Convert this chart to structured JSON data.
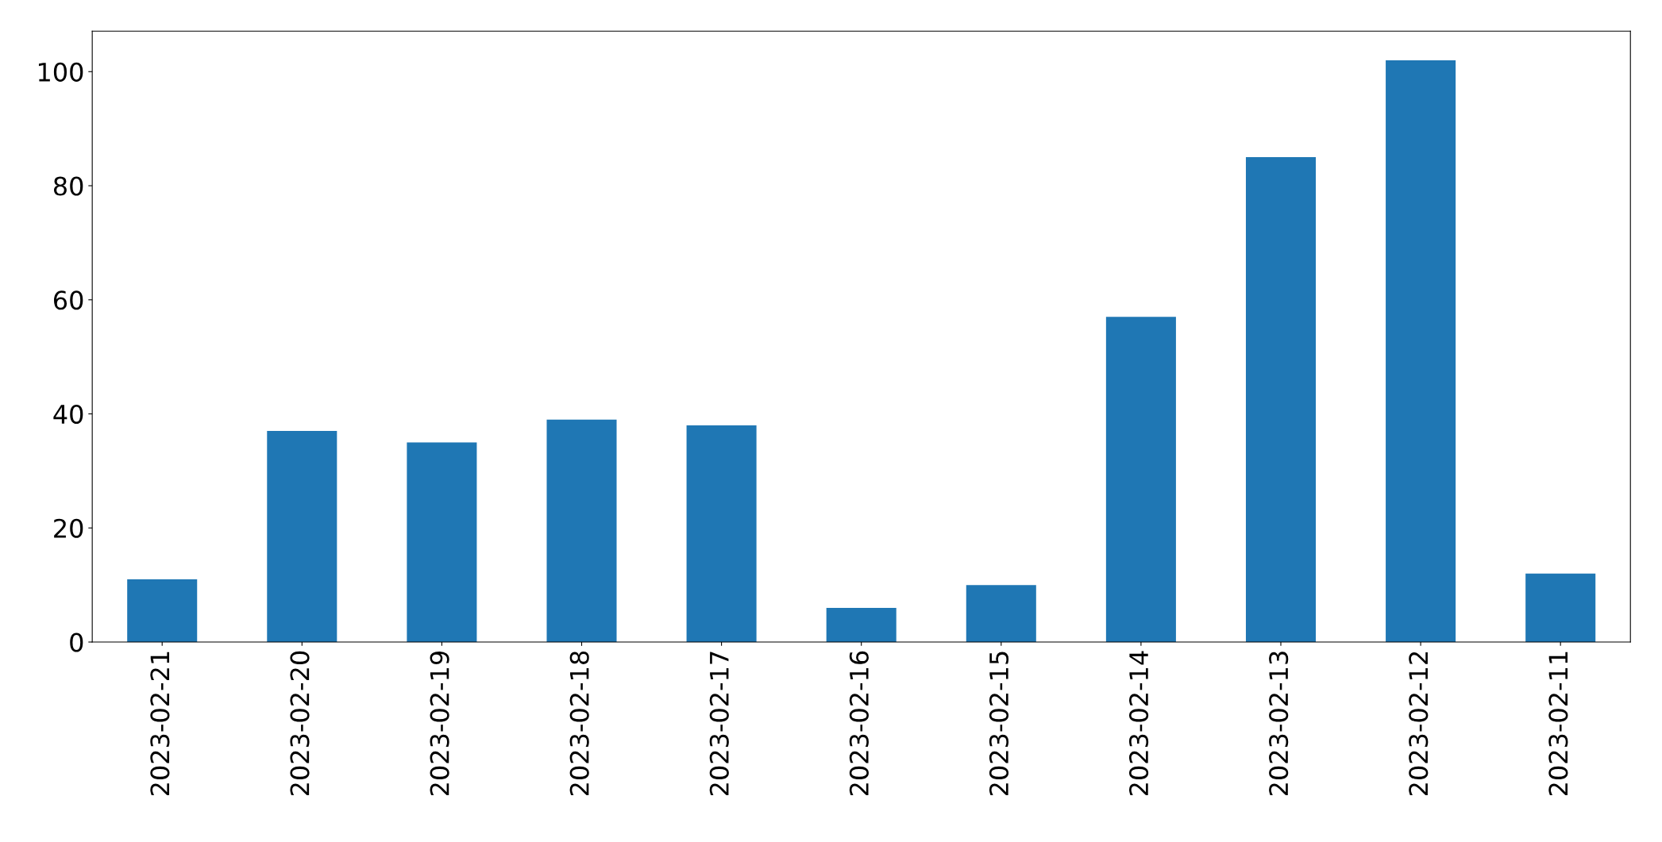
{
  "chart_data": {
    "type": "bar",
    "categories": [
      "2023-02-21",
      "2023-02-20",
      "2023-02-19",
      "2023-02-18",
      "2023-02-17",
      "2023-02-16",
      "2023-02-15",
      "2023-02-14",
      "2023-02-13",
      "2023-02-12",
      "2023-02-11"
    ],
    "values": [
      11,
      37,
      35,
      39,
      38,
      6,
      10,
      57,
      85,
      102,
      12
    ],
    "color": "#1f77b4",
    "ylim": [
      0,
      107.1
    ],
    "yticks": [
      0,
      20,
      40,
      60,
      80,
      100
    ],
    "grid": false
  }
}
